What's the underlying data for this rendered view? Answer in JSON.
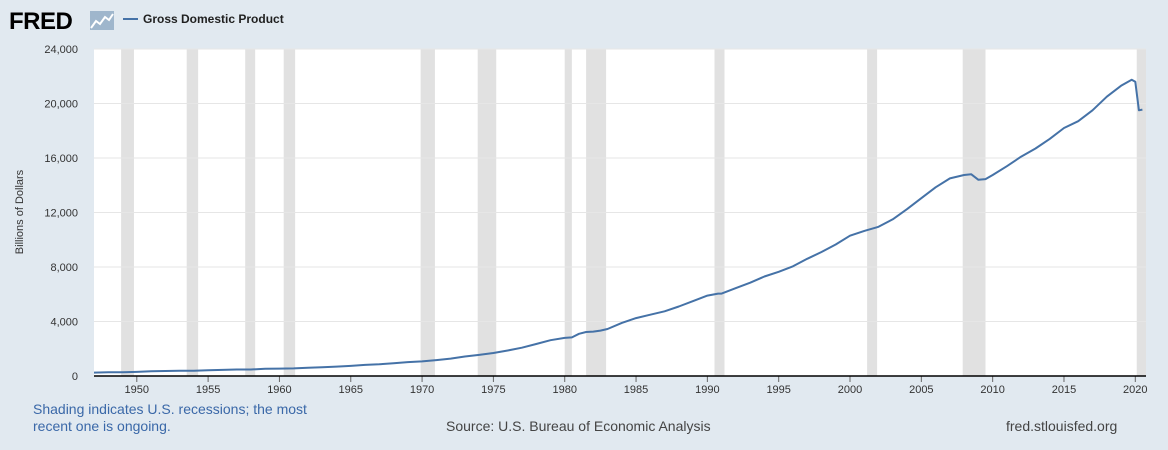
{
  "header": {
    "logo_text": "FRED",
    "logo_icon": "fred-line-chart-icon",
    "legend_label": "Gross Domestic Product"
  },
  "footer": {
    "recession_note": "Shading indicates U.S. recessions; the most recent one is ongoing.",
    "source": "Source: U.S. Bureau of Economic Analysis",
    "url": "fred.stlouisfed.org"
  },
  "colors": {
    "line": "#4572a7",
    "recession": "#e1e1e1",
    "background": "#e1e9f0",
    "plot": "#ffffff",
    "note": "#3a68a8"
  },
  "chart_data": {
    "type": "line",
    "title": "",
    "xlabel": "",
    "ylabel": "Billions of Dollars",
    "xlim": [
      1947.0,
      2020.75
    ],
    "ylim": [
      0,
      24000
    ],
    "yticks": [
      0,
      4000,
      8000,
      12000,
      16000,
      20000,
      24000
    ],
    "ytick_labels": [
      "0",
      "4,000",
      "8,000",
      "12,000",
      "16,000",
      "20,000",
      "24,000"
    ],
    "xticks": [
      1950,
      1955,
      1960,
      1965,
      1970,
      1975,
      1980,
      1985,
      1990,
      1995,
      2000,
      2005,
      2010,
      2015,
      2020
    ],
    "xtick_labels": [
      "1950",
      "1955",
      "1960",
      "1965",
      "1970",
      "1975",
      "1980",
      "1985",
      "1990",
      "1995",
      "2000",
      "2005",
      "2010",
      "2015",
      "2020"
    ],
    "grid": "horizontal",
    "legend": "top-left",
    "recessions": [
      [
        1948.9,
        1949.8
      ],
      [
        1953.5,
        1954.3
      ],
      [
        1957.6,
        1958.3
      ],
      [
        1960.3,
        1961.1
      ],
      [
        1969.9,
        1970.9
      ],
      [
        1973.9,
        1975.2
      ],
      [
        1980.0,
        1980.5
      ],
      [
        1981.5,
        1982.9
      ],
      [
        1990.5,
        1991.2
      ],
      [
        2001.2,
        2001.9
      ],
      [
        2007.9,
        2009.5
      ],
      [
        2020.1,
        2020.75
      ]
    ],
    "series": [
      {
        "name": "Gross Domestic Product",
        "x": [
          1947.0,
          1948.0,
          1949.0,
          1950.0,
          1951.0,
          1952.0,
          1953.0,
          1954.0,
          1955.0,
          1956.0,
          1957.0,
          1958.0,
          1959.0,
          1960.0,
          1961.0,
          1962.0,
          1963.0,
          1964.0,
          1965.0,
          1966.0,
          1967.0,
          1968.0,
          1969.0,
          1970.0,
          1971.0,
          1972.0,
          1973.0,
          1974.0,
          1975.0,
          1976.0,
          1977.0,
          1978.0,
          1979.0,
          1980.0,
          1980.5,
          1981.0,
          1981.5,
          1982.0,
          1982.5,
          1983.0,
          1984.0,
          1985.0,
          1986.0,
          1987.0,
          1988.0,
          1989.0,
          1990.0,
          1990.75,
          1991.0,
          1992.0,
          1993.0,
          1994.0,
          1995.0,
          1996.0,
          1997.0,
          1998.0,
          1999.0,
          2000.0,
          2001.0,
          2002.0,
          2003.0,
          2004.0,
          2005.0,
          2006.0,
          2007.0,
          2008.0,
          2008.5,
          2009.0,
          2009.5,
          2010.0,
          2011.0,
          2012.0,
          2013.0,
          2014.0,
          2015.0,
          2016.0,
          2017.0,
          2018.0,
          2019.0,
          2019.75,
          2020.0,
          2020.25,
          2020.5
        ],
        "values": [
          250,
          275,
          272,
          300,
          350,
          370,
          390,
          390,
          425,
          450,
          475,
          480,
          525,
          540,
          560,
          600,
          640,
          690,
          740,
          815,
          860,
          940,
          1020,
          1070,
          1170,
          1280,
          1430,
          1550,
          1690,
          1870,
          2080,
          2350,
          2630,
          2800,
          2830,
          3100,
          3230,
          3260,
          3330,
          3450,
          3900,
          4250,
          4500,
          4750,
          5100,
          5500,
          5900,
          6050,
          6050,
          6450,
          6850,
          7300,
          7650,
          8050,
          8600,
          9100,
          9650,
          10300,
          10650,
          10950,
          11500,
          12250,
          13050,
          13850,
          14500,
          14750,
          14800,
          14400,
          14450,
          14750,
          15400,
          16100,
          16700,
          17400,
          18200,
          18700,
          19500,
          20500,
          21300,
          21750,
          21600,
          19500,
          19550
        ]
      }
    ]
  }
}
